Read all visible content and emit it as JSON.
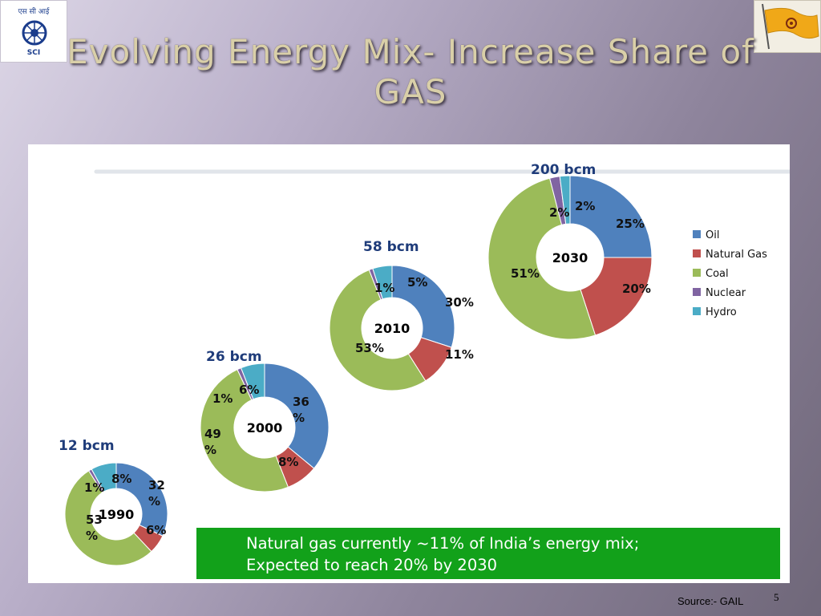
{
  "slide": {
    "title": "Evolving Energy Mix- Increase Share of GAS",
    "logo_text_top": "एस सी आई",
    "logo_text_bottom": "SCI",
    "banner_line1": "Natural gas currently ~11% of India’s energy mix;",
    "banner_line2": "Expected to reach 20% by 2030",
    "source": "Source:- GAIL",
    "page_number": "5"
  },
  "colors": {
    "Oil": "#4f81bd",
    "Natural Gas": "#c0504d",
    "Coal": "#9bbb59",
    "Nuclear": "#8064a2",
    "Hydro": "#4bacc6",
    "title": "#d9cfa8",
    "banner": "#12a11a"
  },
  "chart_data": {
    "type": "pie",
    "variant": "donut",
    "title": "",
    "legend": {
      "position": "right",
      "entries": [
        "Oil",
        "Natural Gas",
        "Coal",
        "Nuclear",
        "Hydro"
      ]
    },
    "categories": [
      "Oil",
      "Natural Gas",
      "Coal",
      "Nuclear",
      "Hydro"
    ],
    "series": [
      {
        "year": "1990",
        "volume": "12 bcm",
        "values": [
          32,
          6,
          53,
          1,
          8
        ],
        "labels": [
          "32\n%",
          "6%",
          "53\n%",
          "1%",
          "8%"
        ]
      },
      {
        "year": "2000",
        "volume": "26 bcm",
        "values": [
          36,
          8,
          49,
          1,
          6
        ],
        "labels": [
          "36\n%",
          "8%",
          "49\n%",
          "1%",
          "6%"
        ]
      },
      {
        "year": "2010",
        "volume": "58 bcm",
        "values": [
          30,
          11,
          53,
          1,
          5
        ],
        "labels": [
          "30%",
          "11%",
          "53%",
          "1%",
          "5%"
        ]
      },
      {
        "year": "2030",
        "volume": "200 bcm",
        "values": [
          25,
          20,
          51,
          2,
          2
        ],
        "labels": [
          "25%",
          "20%",
          "51%",
          "2%",
          "2%"
        ]
      }
    ]
  }
}
